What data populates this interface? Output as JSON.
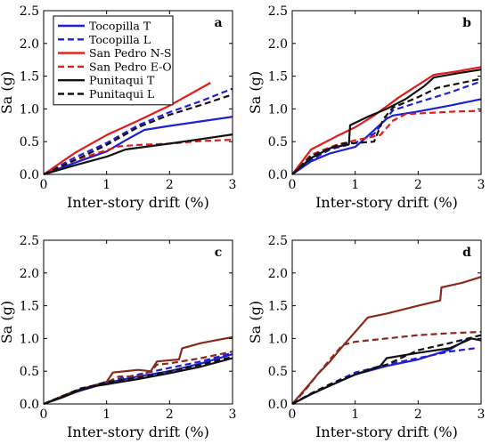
{
  "legend": {
    "items": [
      {
        "label": "Tocopilla T",
        "color": "#1f1fd6",
        "dash": false
      },
      {
        "label": "Tocopilla L",
        "color": "#1f1fd6",
        "dash": true
      },
      {
        "label": "San Pedro N-S",
        "color": "#e31a1a",
        "dash": false
      },
      {
        "label": "San Pedro E-O",
        "color": "#e31a1a",
        "dash": true
      },
      {
        "label": "Punitaqui T",
        "color": "#111111",
        "dash": false
      },
      {
        "label": "Punitaqui L",
        "color": "#111111",
        "dash": true
      }
    ]
  },
  "chart_data": [
    {
      "type": "line",
      "panel_label": "a",
      "xlabel": "Inter-story drift (%)",
      "ylabel": "Sa (g)",
      "xlim": [
        0,
        3
      ],
      "ylim": [
        0,
        2.5
      ],
      "xticks": [
        "0",
        "1",
        "2",
        "3"
      ],
      "yticks": [
        "0.0",
        "0.5",
        "1.0",
        "1.5",
        "2.0",
        "2.5"
      ],
      "legend_position": "top-left",
      "series": [
        {
          "name": "Tocopilla T",
          "color": "#1f1fd6",
          "dash": false,
          "x": [
            0,
            0.5,
            1.0,
            1.3,
            1.6,
            2.0,
            2.5,
            3.0
          ],
          "y": [
            0,
            0.18,
            0.35,
            0.52,
            0.68,
            0.74,
            0.81,
            0.88
          ]
        },
        {
          "name": "Tocopilla L",
          "color": "#1f1fd6",
          "dash": true,
          "x": [
            0,
            0.5,
            1.0,
            1.5,
            2.0,
            2.5,
            3.0
          ],
          "y": [
            0,
            0.26,
            0.48,
            0.75,
            0.95,
            1.12,
            1.31
          ]
        },
        {
          "name": "San Pedro N-S",
          "color": "#e31a1a",
          "dash": false,
          "x": [
            0,
            0.5,
            1.0,
            1.5,
            2.0,
            2.65
          ],
          "y": [
            0,
            0.33,
            0.6,
            0.82,
            1.05,
            1.4
          ]
        },
        {
          "name": "San Pedro E-O",
          "color": "#e31a1a",
          "dash": true,
          "x": [
            0,
            0.5,
            1.0,
            1.2,
            1.5,
            2.0,
            2.5,
            3.0
          ],
          "y": [
            0,
            0.22,
            0.37,
            0.43,
            0.45,
            0.47,
            0.51,
            0.53
          ]
        },
        {
          "name": "Punitaqui T",
          "color": "#111111",
          "dash": false,
          "x": [
            0,
            0.5,
            1.0,
            1.3,
            1.6,
            2.0,
            2.5,
            3.0
          ],
          "y": [
            0,
            0.14,
            0.27,
            0.38,
            0.42,
            0.47,
            0.54,
            0.61
          ]
        },
        {
          "name": "Punitaqui L",
          "color": "#111111",
          "dash": true,
          "x": [
            0,
            0.5,
            1.0,
            1.5,
            2.0,
            2.5,
            3.0
          ],
          "y": [
            0,
            0.22,
            0.45,
            0.72,
            0.91,
            1.06,
            1.22
          ]
        }
      ]
    },
    {
      "type": "line",
      "panel_label": "b",
      "xlabel": "Inter-story drift (%)",
      "ylabel": "Sa (g)",
      "xlim": [
        0,
        3
      ],
      "ylim": [
        0,
        2.5
      ],
      "xticks": [
        "0",
        "1",
        "2",
        "3"
      ],
      "yticks": [
        "0.0",
        "0.5",
        "1.0",
        "1.5",
        "2.0",
        "2.5"
      ],
      "series": [
        {
          "name": "Tocopilla T",
          "color": "#1f1fd6",
          "dash": false,
          "x": [
            0,
            0.3,
            0.6,
            1.0,
            1.1,
            1.5,
            1.6,
            2.0,
            2.5,
            3.0
          ],
          "y": [
            0,
            0.2,
            0.32,
            0.42,
            0.5,
            0.85,
            0.9,
            0.96,
            1.05,
            1.15
          ]
        },
        {
          "name": "Tocopilla L",
          "color": "#1f1fd6",
          "dash": true,
          "x": [
            0,
            0.3,
            0.6,
            1.0,
            1.3,
            1.6,
            2.0,
            2.5,
            3.0
          ],
          "y": [
            0,
            0.22,
            0.38,
            0.48,
            0.62,
            0.98,
            1.1,
            1.25,
            1.42
          ]
        },
        {
          "name": "San Pedro N-S",
          "color": "#e31a1a",
          "dash": false,
          "x": [
            0,
            0.3,
            0.7,
            1.0,
            1.3,
            1.7,
            2.25,
            2.6,
            3.0
          ],
          "y": [
            0,
            0.38,
            0.58,
            0.72,
            0.9,
            1.18,
            1.52,
            1.57,
            1.64
          ]
        },
        {
          "name": "San Pedro E-O",
          "color": "#e31a1a",
          "dash": true,
          "x": [
            0,
            0.3,
            0.7,
            1.0,
            1.4,
            1.6,
            1.8,
            2.2,
            2.6,
            3.0
          ],
          "y": [
            0,
            0.3,
            0.45,
            0.52,
            0.6,
            0.82,
            0.92,
            0.94,
            0.96,
            0.97
          ]
        },
        {
          "name": "Punitaqui T",
          "color": "#111111",
          "dash": false,
          "x": [
            0,
            0.3,
            0.6,
            0.9,
            0.92,
            1.2,
            1.5,
            1.8,
            2.1,
            2.25,
            2.6,
            3.0
          ],
          "y": [
            0,
            0.25,
            0.4,
            0.46,
            0.75,
            0.88,
            1.0,
            1.15,
            1.35,
            1.48,
            1.54,
            1.6
          ]
        },
        {
          "name": "Punitaqui L",
          "color": "#111111",
          "dash": true,
          "x": [
            0,
            0.3,
            0.6,
            0.8,
            1.0,
            1.3,
            1.45,
            1.6,
            2.0,
            2.3,
            2.7,
            3.0
          ],
          "y": [
            0,
            0.28,
            0.4,
            0.47,
            0.48,
            0.5,
            0.85,
            1.02,
            1.18,
            1.32,
            1.4,
            1.46
          ]
        }
      ]
    },
    {
      "type": "line",
      "panel_label": "c",
      "xlabel": "Inter-story drift (%)",
      "ylabel": "Sa (g)",
      "xlim": [
        0,
        3
      ],
      "ylim": [
        0,
        2.5
      ],
      "xticks": [
        "0",
        "1",
        "2",
        "3"
      ],
      "yticks": [
        "0.0",
        "0.5",
        "1.0",
        "1.5",
        "2.0",
        "2.5"
      ],
      "series": [
        {
          "name": "Tocopilla T",
          "color": "#1f1fd6",
          "dash": false,
          "x": [
            0,
            0.5,
            1.0,
            1.5,
            2.0,
            2.5,
            3.0
          ],
          "y": [
            0,
            0.18,
            0.32,
            0.42,
            0.5,
            0.62,
            0.76
          ]
        },
        {
          "name": "Tocopilla L",
          "color": "#1f1fd6",
          "dash": true,
          "x": [
            0,
            0.5,
            1.0,
            1.5,
            2.0,
            2.5,
            3.0
          ],
          "y": [
            0,
            0.2,
            0.34,
            0.45,
            0.55,
            0.65,
            0.78
          ]
        },
        {
          "name": "San Pedro N-S",
          "color": "#8b2a1a",
          "dash": false,
          "x": [
            0,
            0.5,
            1.0,
            1.1,
            1.5,
            1.7,
            1.8,
            2.15,
            2.2,
            2.5,
            3.0
          ],
          "y": [
            0,
            0.2,
            0.34,
            0.48,
            0.52,
            0.5,
            0.65,
            0.68,
            0.85,
            0.93,
            1.02
          ]
        },
        {
          "name": "San Pedro E-O",
          "color": "#8b2a1a",
          "dash": true,
          "x": [
            0,
            0.5,
            1.0,
            1.2,
            1.5,
            1.7,
            1.8,
            2.0,
            2.5,
            3.0
          ],
          "y": [
            0,
            0.2,
            0.33,
            0.42,
            0.42,
            0.5,
            0.6,
            0.62,
            0.7,
            0.8
          ]
        },
        {
          "name": "Punitaqui T",
          "color": "#111111",
          "dash": false,
          "x": [
            0,
            0.3,
            0.6,
            0.8,
            1.0,
            1.5,
            2.0,
            2.5,
            3.0
          ],
          "y": [
            0,
            0.1,
            0.22,
            0.27,
            0.3,
            0.38,
            0.47,
            0.57,
            0.7
          ]
        },
        {
          "name": "Punitaqui L",
          "color": "#111111",
          "dash": true,
          "x": [
            0,
            0.3,
            0.6,
            0.8,
            1.0,
            1.5,
            2.0,
            2.5,
            3.0
          ],
          "y": [
            0,
            0.12,
            0.24,
            0.28,
            0.33,
            0.4,
            0.5,
            0.6,
            0.72
          ]
        }
      ]
    },
    {
      "type": "line",
      "panel_label": "d",
      "xlabel": "Inter-story drift (%)",
      "ylabel": "Sa (g)",
      "xlim": [
        0,
        3
      ],
      "ylim": [
        0,
        2.5
      ],
      "xticks": [
        "0",
        "1",
        "2",
        "3"
      ],
      "yticks": [
        "0.0",
        "0.5",
        "1.0",
        "1.5",
        "2.0",
        "2.5"
      ],
      "series": [
        {
          "name": "Tocopilla T",
          "color": "#1f1fd6",
          "dash": false,
          "x": [
            0,
            0.3,
            0.6,
            1.0,
            1.5,
            2.0,
            2.5,
            2.8
          ],
          "y": [
            0,
            0.15,
            0.28,
            0.45,
            0.58,
            0.68,
            0.83,
            1.0
          ]
        },
        {
          "name": "Tocopilla L",
          "color": "#1f1fd6",
          "dash": true,
          "x": [
            0,
            0.3,
            0.6,
            1.0,
            1.5,
            2.0,
            2.5,
            2.9
          ],
          "y": [
            0,
            0.16,
            0.3,
            0.48,
            0.6,
            0.7,
            0.8,
            0.85
          ]
        },
        {
          "name": "San Pedro N-S",
          "color": "#8b2a1a",
          "dash": false,
          "x": [
            0,
            0.2,
            0.4,
            0.6,
            0.8,
            1.0,
            1.2,
            1.5,
            2.0,
            2.35,
            2.37,
            2.7,
            3.0
          ],
          "y": [
            0,
            0.22,
            0.45,
            0.65,
            0.88,
            1.1,
            1.32,
            1.38,
            1.5,
            1.58,
            1.78,
            1.85,
            1.94
          ]
        },
        {
          "name": "San Pedro E-O",
          "color": "#8b2a1a",
          "dash": true,
          "x": [
            0,
            0.2,
            0.4,
            0.6,
            0.8,
            1.0,
            1.5,
            2.0,
            2.5,
            3.0
          ],
          "y": [
            0,
            0.2,
            0.45,
            0.68,
            0.9,
            0.95,
            1.0,
            1.05,
            1.08,
            1.1
          ]
        },
        {
          "name": "Punitaqui T",
          "color": "#111111",
          "dash": false,
          "x": [
            0,
            0.3,
            0.6,
            1.0,
            1.4,
            1.5,
            2.0,
            2.5,
            2.85,
            3.0
          ],
          "y": [
            0,
            0.15,
            0.28,
            0.45,
            0.58,
            0.7,
            0.78,
            0.85,
            1.0,
            0.97
          ]
        },
        {
          "name": "Punitaqui L",
          "color": "#111111",
          "dash": true,
          "x": [
            0,
            0.3,
            0.6,
            1.0,
            1.5,
            2.0,
            2.5,
            3.0
          ],
          "y": [
            0,
            0.16,
            0.3,
            0.45,
            0.6,
            0.82,
            0.93,
            1.05
          ]
        }
      ]
    }
  ]
}
